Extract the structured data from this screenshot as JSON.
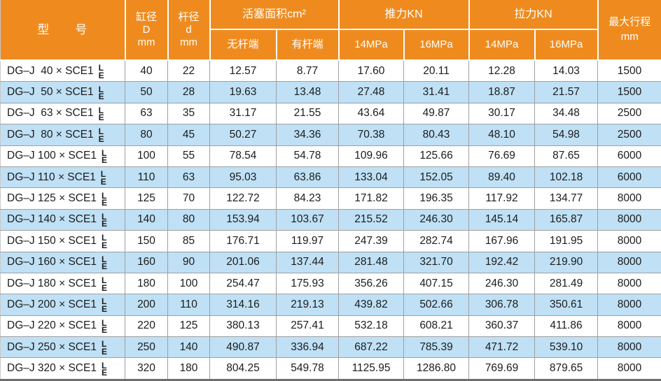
{
  "colors": {
    "header_bg": "#EF8B1E",
    "header_text": "#FFFFFF",
    "row_bg": "#FFFFFF",
    "row_alt_bg": "#BFE0F5",
    "text": "#1C1C1C",
    "grid_line": "#A0A0A0",
    "header_divider": "#FFFFFF",
    "heavy_line": "#6E6E6E"
  },
  "table": {
    "header": {
      "model": "型　　号",
      "bore": "缸径\nD\nmm",
      "rod": "杆径\nd\nmm",
      "piston_area": "活塞面积cm²",
      "push": "推力KN",
      "pull": "拉力KN",
      "stroke": "最大行程\nmm",
      "rodless_end": "无杆端",
      "rod_end": "有杆端",
      "push_14mpa": "14MPa",
      "push_16mpa": "16MPa",
      "pull_14mpa": "14MPa",
      "pull_16mpa": "16MPa"
    },
    "variant_stack": [
      "L",
      "E"
    ],
    "rows": [
      {
        "model": "DG–J  40 × SCE1",
        "values": [
          "40",
          "22",
          "12.57",
          "8.77",
          "17.60",
          "20.11",
          "12.28",
          "14.03",
          "1500"
        ]
      },
      {
        "model": "DG–J  50 × SCE1",
        "values": [
          "50",
          "28",
          "19.63",
          "13.48",
          "27.48",
          "31.41",
          "18.87",
          "21.57",
          "1500"
        ]
      },
      {
        "model": "DG–J  63 × SCE1",
        "values": [
          "63",
          "35",
          "31.17",
          "21.55",
          "43.64",
          "49.87",
          "30.17",
          "34.48",
          "2500"
        ]
      },
      {
        "model": "DG–J  80 × SCE1",
        "values": [
          "80",
          "45",
          "50.27",
          "34.36",
          "70.38",
          "80.43",
          "48.10",
          "54.98",
          "2500"
        ]
      },
      {
        "model": "DG–J 100 × SCE1",
        "values": [
          "100",
          "55",
          "78.54",
          "54.78",
          "109.96",
          "125.66",
          "76.69",
          "87.65",
          "6000"
        ]
      },
      {
        "model": "DG–J 110 × SCE1",
        "values": [
          "110",
          "63",
          "95.03",
          "63.86",
          "133.04",
          "152.05",
          "89.40",
          "102.18",
          "6000"
        ]
      },
      {
        "model": "DG–J 125 × SCE1",
        "values": [
          "125",
          "70",
          "122.72",
          "84.23",
          "171.82",
          "196.35",
          "117.92",
          "134.77",
          "8000"
        ]
      },
      {
        "model": "DG–J 140 × SCE1",
        "values": [
          "140",
          "80",
          "153.94",
          "103.67",
          "215.52",
          "246.30",
          "145.14",
          "165.87",
          "8000"
        ]
      },
      {
        "model": "DG–J 150 × SCE1",
        "values": [
          "150",
          "85",
          "176.71",
          "119.97",
          "247.39",
          "282.74",
          "167.96",
          "191.95",
          "8000"
        ]
      },
      {
        "model": "DG–J 160 × SCE1",
        "values": [
          "160",
          "90",
          "201.06",
          "137.44",
          "281.48",
          "321.70",
          "192.42",
          "219.90",
          "8000"
        ]
      },
      {
        "model": "DG–J 180 × SCE1",
        "values": [
          "180",
          "100",
          "254.47",
          "175.93",
          "356.26",
          "407.15",
          "246.30",
          "281.49",
          "8000"
        ]
      },
      {
        "model": "DG–J 200 × SCE1",
        "values": [
          "200",
          "110",
          "314.16",
          "219.13",
          "439.82",
          "502.66",
          "306.78",
          "350.61",
          "8000"
        ]
      },
      {
        "model": "DG–J 220 × SCE1",
        "values": [
          "220",
          "125",
          "380.13",
          "257.41",
          "532.18",
          "608.21",
          "360.37",
          "411.86",
          "8000"
        ]
      },
      {
        "model": "DG–J 250 × SCE1",
        "values": [
          "250",
          "140",
          "490.87",
          "336.94",
          "687.22",
          "785.39",
          "471.72",
          "539.10",
          "8000"
        ]
      },
      {
        "model": "DG–J 320 × SCE1",
        "values": [
          "320",
          "180",
          "804.25",
          "549.78",
          "1125.95",
          "1286.80",
          "769.69",
          "879.65",
          "8000"
        ]
      }
    ]
  }
}
